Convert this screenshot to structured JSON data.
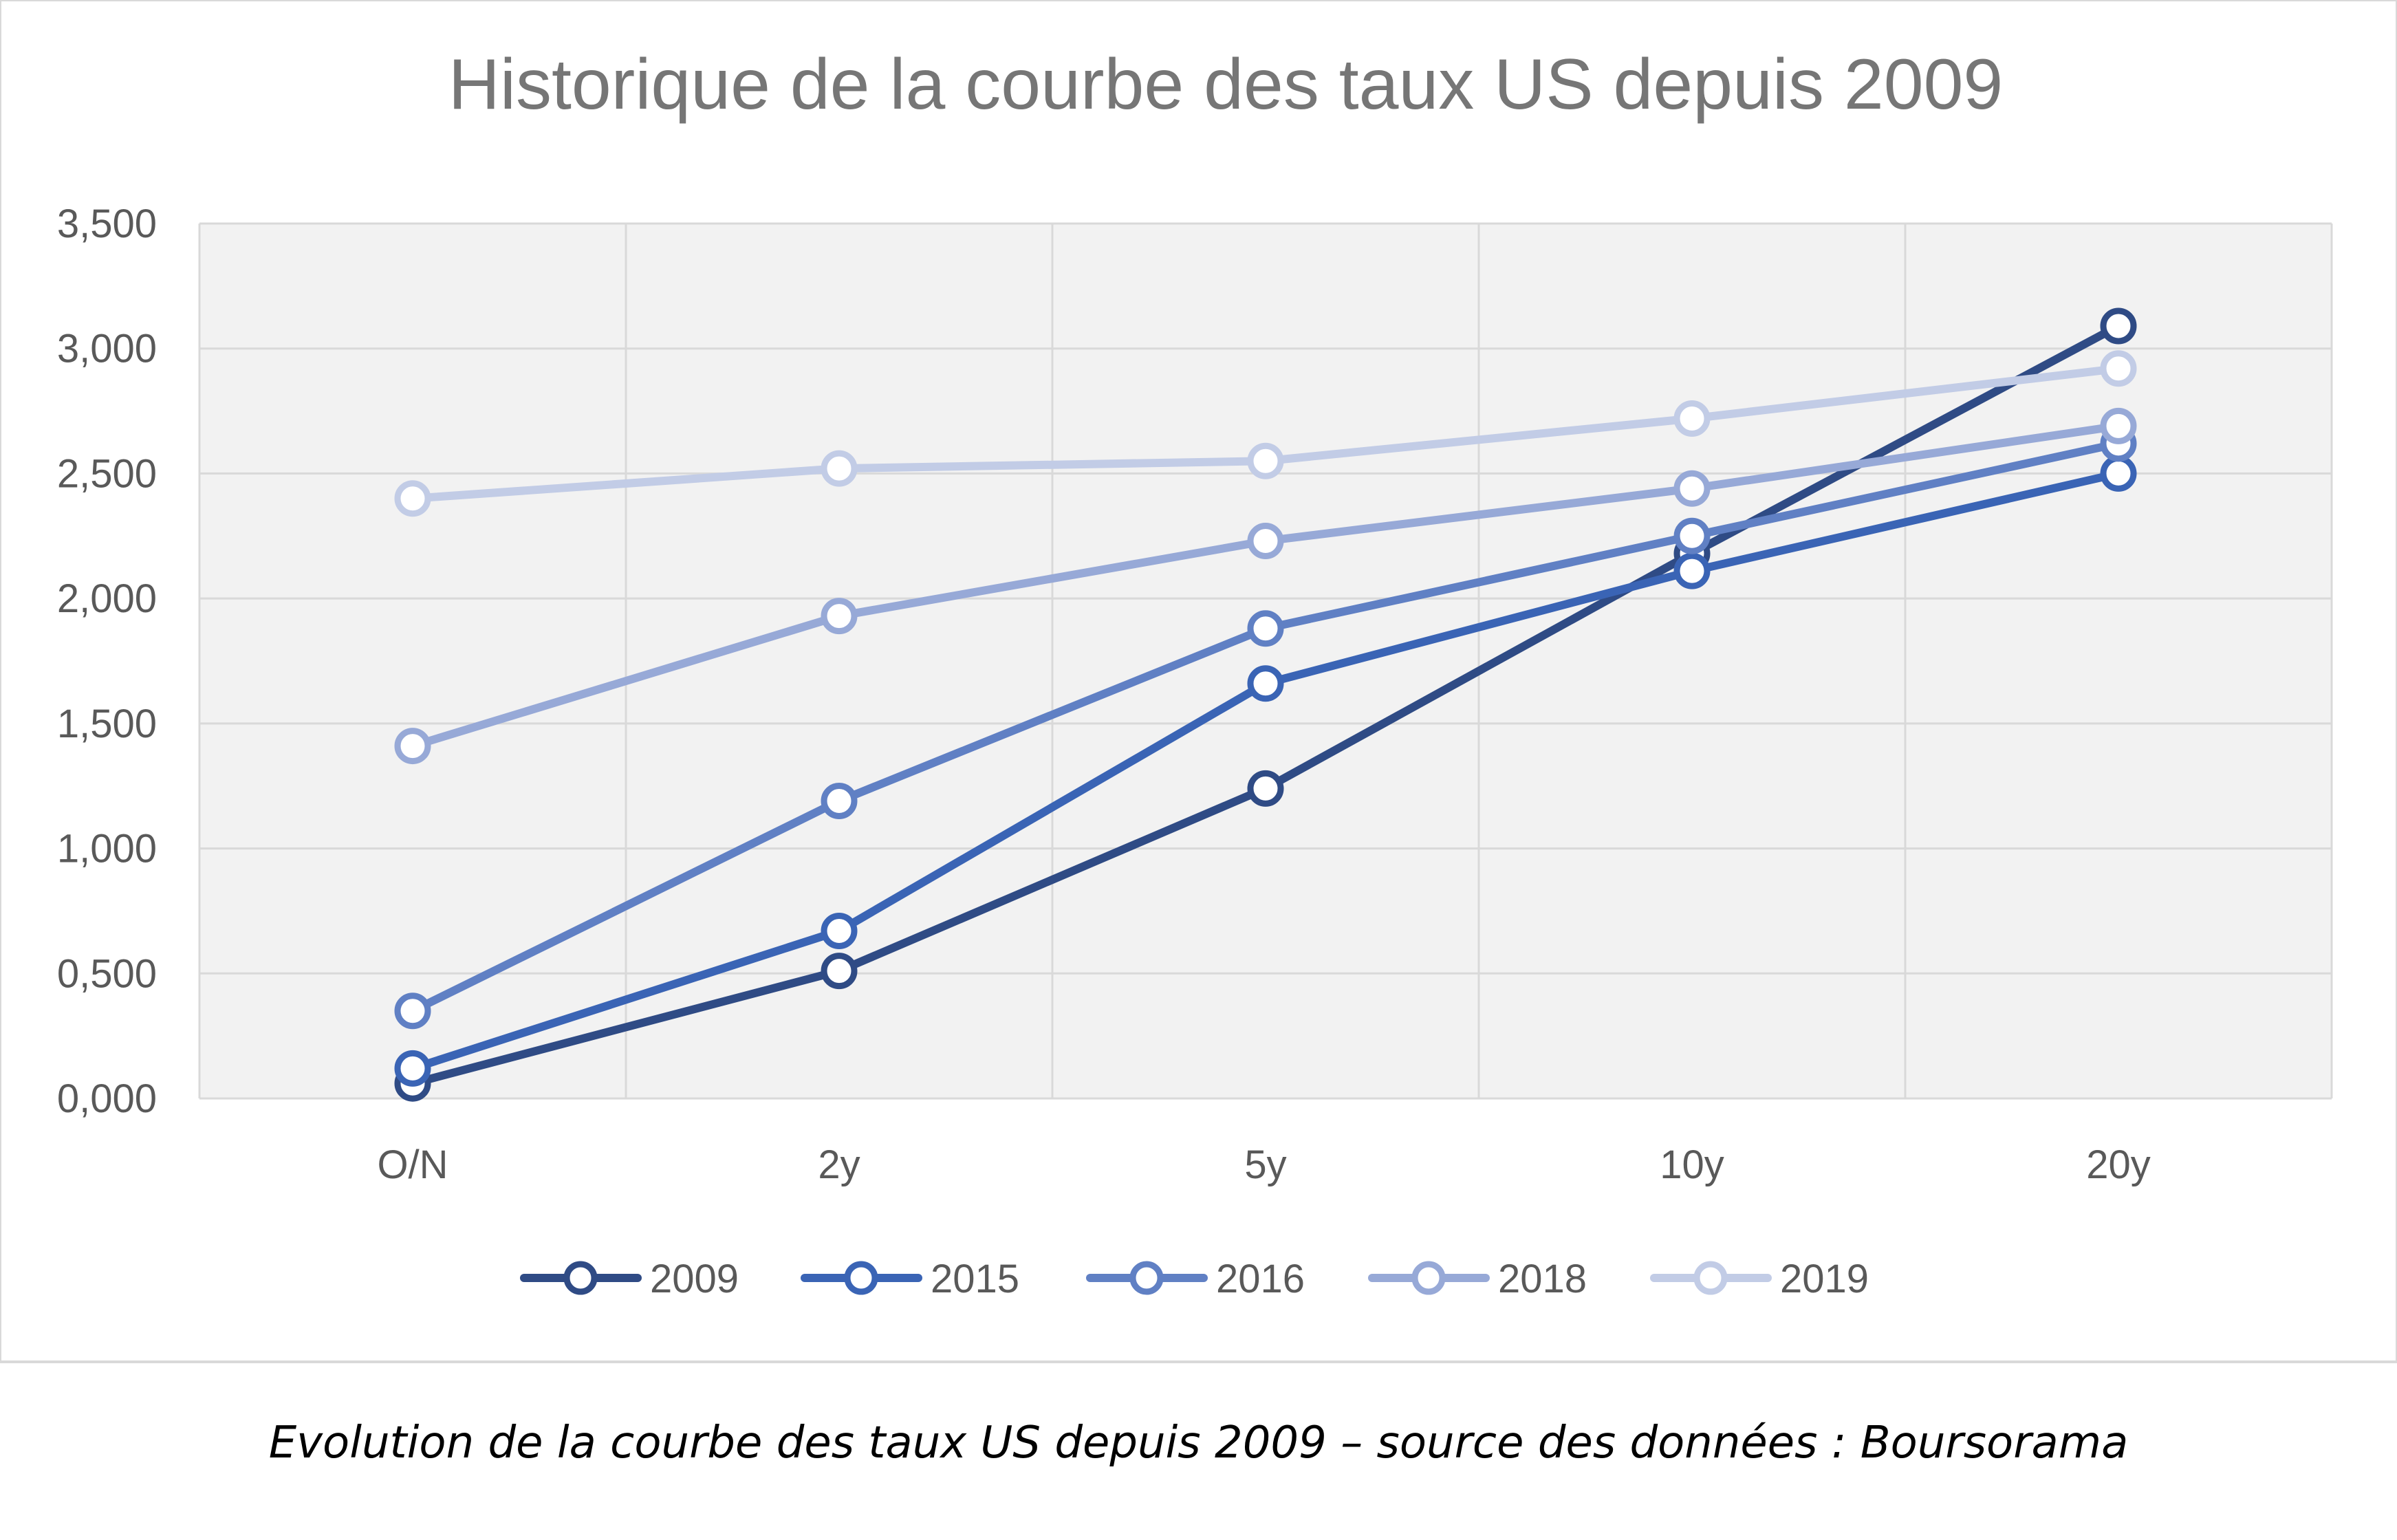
{
  "chart_data": {
    "type": "line",
    "title": "Historique de la courbe des taux US depuis 2009",
    "categories": [
      "O/N",
      "2y",
      "5y",
      "10y",
      "20y"
    ],
    "y_ticks": [
      "0,000",
      "0,500",
      "1,000",
      "1,500",
      "2,000",
      "2,500",
      "3,000",
      "3,500"
    ],
    "ylim": [
      0,
      3.5
    ],
    "grid": true,
    "legend_position": "bottom",
    "series": [
      {
        "name": "2009",
        "color": "#2f4b85",
        "values": [
          0.06,
          0.51,
          1.24,
          2.18,
          3.09
        ]
      },
      {
        "name": "2015",
        "color": "#3a64b5",
        "values": [
          0.12,
          0.67,
          1.66,
          2.11,
          2.5
        ]
      },
      {
        "name": "2016",
        "color": "#6080c4",
        "values": [
          0.35,
          1.19,
          1.88,
          2.25,
          2.62
        ]
      },
      {
        "name": "2018",
        "color": "#97a9d7",
        "values": [
          1.41,
          1.93,
          2.23,
          2.44,
          2.69
        ]
      },
      {
        "name": "2019",
        "color": "#c2cce6",
        "values": [
          2.4,
          2.52,
          2.55,
          2.72,
          2.92
        ]
      }
    ]
  },
  "caption": "Evolution de la courbe des taux US depuis 2009 – source des données : Boursorama"
}
